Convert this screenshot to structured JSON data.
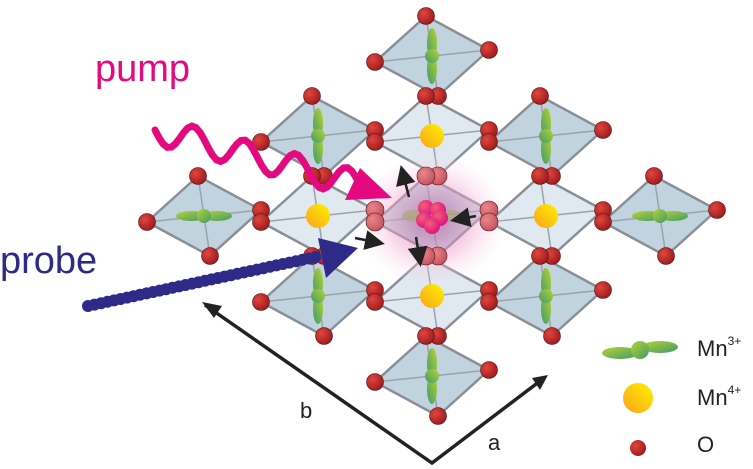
{
  "labels": {
    "pump": "pump",
    "probe": "probe",
    "axis_a": "a",
    "axis_b": "b"
  },
  "legend": [
    {
      "symbol": "Mn",
      "charge": "3+",
      "shape": "dumbbell-orbital"
    },
    {
      "symbol": "Mn",
      "charge": "4+",
      "shape": "sphere"
    },
    {
      "symbol": "O",
      "charge": "",
      "shape": "small-sphere"
    }
  ],
  "colors": {
    "pump": "#e5097f",
    "probe": "#2e2a87",
    "oxygen": "#c0272d",
    "mn4": "#fbb91f",
    "mn3": "#7cb342",
    "octahedron_mn3": "#b9cedb",
    "octahedron_mn4": "#dde6ee",
    "excitation_glow": "#f5b5d6"
  }
}
